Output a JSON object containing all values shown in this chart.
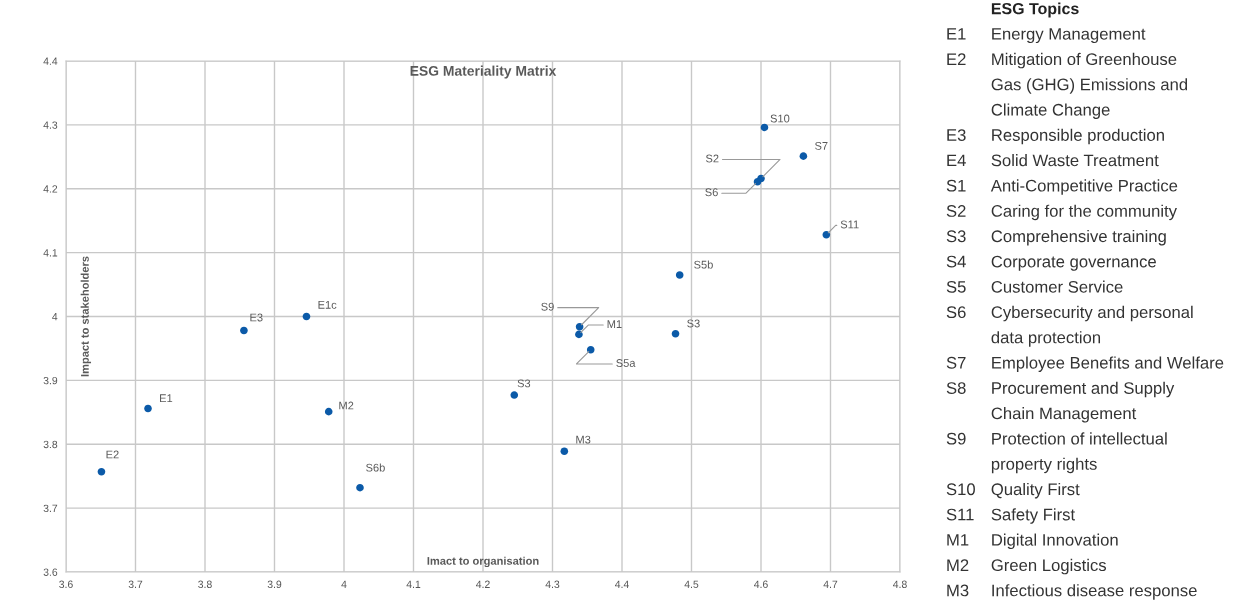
{
  "chart_data": [
    {
      "type": "scatter",
      "title": "ESG Materiality Matrix",
      "xlabel": "Imact to organisation",
      "ylabel": "Impact to stakeholders",
      "x": [
        3.651,
        3.718,
        3.856,
        3.946,
        3.978,
        4.023,
        4.245,
        4.317,
        4.339,
        4.338,
        4.355,
        4.477,
        4.483,
        4.605,
        4.661,
        4.6,
        4.595,
        4.694
      ],
      "series": [
        {
          "color": "#0b5aa8",
          "values": [
            3.757,
            3.856,
            3.978,
            4.0,
            3.851,
            3.732,
            3.877,
            3.789,
            3.984,
            3.972,
            3.948,
            3.973,
            4.065,
            4.296,
            4.251,
            4.216,
            4.211,
            4.128
          ]
        }
      ],
      "annotations": [
        {
          "text": "E2",
          "x": 3.651,
          "y": 3.757
        },
        {
          "text": "E1",
          "x": 3.718,
          "y": 3.856
        },
        {
          "text": "E3",
          "x": 3.856,
          "y": 3.978
        },
        {
          "text": "E1c",
          "x": 3.946,
          "y": 4.0
        },
        {
          "text": "M2",
          "x": 3.978,
          "y": 3.851
        },
        {
          "text": "S6b",
          "x": 4.023,
          "y": 3.732
        },
        {
          "text": "S3",
          "x": 4.245,
          "y": 3.877
        },
        {
          "text": "M3",
          "x": 4.317,
          "y": 3.789
        },
        {
          "text": "S9",
          "x": 4.339,
          "y": 3.984
        },
        {
          "text": "M1",
          "x": 4.338,
          "y": 3.972
        },
        {
          "text": "S5a",
          "x": 4.355,
          "y": 3.948
        },
        {
          "text": "S3",
          "x": 4.477,
          "y": 3.973
        },
        {
          "text": "S5b",
          "x": 4.483,
          "y": 4.065
        },
        {
          "text": "S10",
          "x": 4.605,
          "y": 4.296
        },
        {
          "text": "S7",
          "x": 4.661,
          "y": 4.251
        },
        {
          "text": "S2",
          "x": 4.6,
          "y": 4.216
        },
        {
          "text": "S6",
          "x": 4.595,
          "y": 4.211
        },
        {
          "text": "S11",
          "x": 4.694,
          "y": 4.128
        }
      ],
      "xlim": [
        3.6,
        4.8
      ],
      "xticks": [
        3.6,
        3.7,
        3.8,
        3.9,
        4,
        4.1,
        4.2,
        4.3,
        4.4,
        4.5,
        4.6,
        4.7,
        4.8
      ],
      "ylim": [
        3.6,
        4.4
      ],
      "yticks": [
        3.6,
        3.7,
        3.8,
        3.9,
        4,
        4.1,
        4.2,
        4.3,
        4.4
      ],
      "grid": true,
      "marker": "circle"
    },
    {
      "type": "other",
      "title": "ESG Topics",
      "annotations": [
        "E1 Energy Management",
        "E2 Mitigation of Greenhouse\nGas (GHG) Emissions and\nClimate Change",
        "E3 Responsible production",
        "E4 Solid Waste Treatment",
        "S1 Anti-Competitive Practice",
        "S2 Caring for the community",
        "S3 Comprehensive training",
        "S4 Corporate governance",
        "S5 Customer Service",
        "S6 Cybersecurity and personal\ndata protection",
        "S7 Employee Benefits and Welfare",
        "S8 Procurement and Supply\nChain Management",
        "S9 Protection of intellectual\nproperty rights",
        "S10 Quality First",
        "S11 Safety First",
        "M1 Digital Innovation",
        "M2 Green Logistics",
        "M3 Infectious disease response"
      ]
    }
  ]
}
